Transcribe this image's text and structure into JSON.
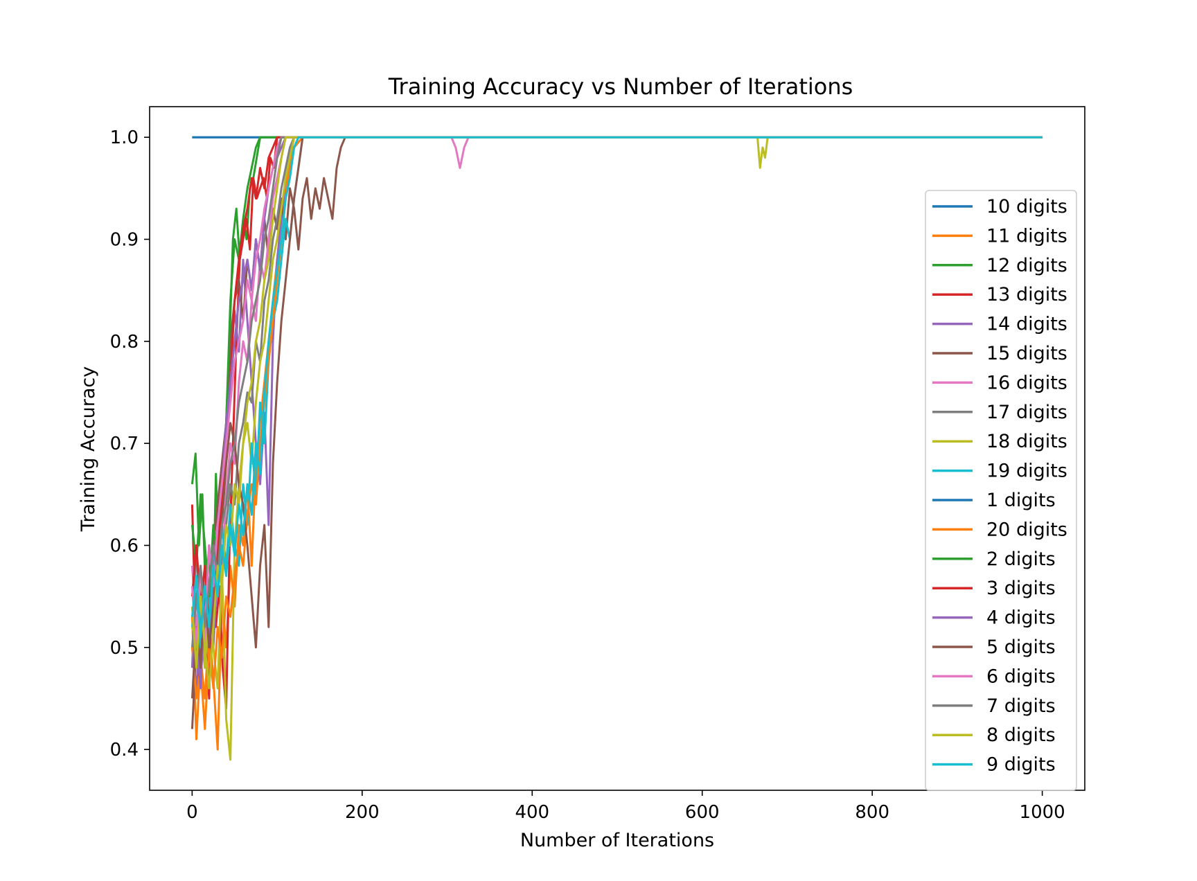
{
  "chart_data": {
    "type": "line",
    "title": "Training Accuracy vs Number of Iterations",
    "xlabel": "Number of Iterations",
    "ylabel": "Training Accuracy",
    "xlim": [
      -50,
      1050
    ],
    "ylim": [
      0.36,
      1.03
    ],
    "xticks": [
      0,
      200,
      400,
      600,
      800,
      1000
    ],
    "xtick_labels": [
      "0",
      "200",
      "400",
      "600",
      "800",
      "1000"
    ],
    "yticks": [
      0.4,
      0.5,
      0.6,
      0.7,
      0.8,
      0.9,
      1.0
    ],
    "ytick_labels": [
      "0.4",
      "0.5",
      "0.6",
      "0.7",
      "0.8",
      "0.9",
      "1.0"
    ],
    "grid": false,
    "legend_position": "right",
    "series": [
      {
        "name": "10 digits",
        "color": "#1f77b4",
        "x": [
          0,
          20,
          40,
          60,
          80,
          100,
          120,
          140,
          1000
        ],
        "y": [
          1.0,
          1.0,
          1.0,
          1.0,
          1.0,
          1.0,
          1.0,
          1.0,
          1.0
        ]
      },
      {
        "name": "11 digits",
        "color": "#ff7f0e",
        "x": [
          0,
          5,
          10,
          15,
          20,
          25,
          30,
          35,
          40,
          45,
          50,
          55,
          60,
          65,
          70,
          75,
          80,
          85,
          90,
          95,
          100,
          105,
          110,
          115,
          120,
          130,
          1000
        ],
        "y": [
          0.53,
          0.41,
          0.49,
          0.45,
          0.52,
          0.47,
          0.4,
          0.55,
          0.5,
          0.58,
          0.54,
          0.62,
          0.6,
          0.66,
          0.58,
          0.68,
          0.72,
          0.76,
          0.8,
          0.84,
          0.88,
          0.92,
          0.95,
          0.98,
          1.0,
          1.0,
          1.0
        ]
      },
      {
        "name": "12 digits",
        "color": "#2ca02c",
        "x": [
          0,
          4,
          8,
          12,
          16,
          20,
          24,
          28,
          32,
          36,
          40,
          44,
          48,
          52,
          56,
          60,
          64,
          68,
          72,
          76,
          80,
          84,
          88,
          92,
          100,
          1000
        ],
        "y": [
          0.66,
          0.69,
          0.6,
          0.65,
          0.55,
          0.6,
          0.52,
          0.67,
          0.58,
          0.66,
          0.72,
          0.8,
          0.9,
          0.93,
          0.88,
          0.92,
          0.9,
          0.95,
          0.96,
          0.98,
          1.0,
          1.0,
          1.0,
          1.0,
          1.0,
          1.0
        ]
      },
      {
        "name": "13 digits",
        "color": "#d62728",
        "x": [
          0,
          4,
          8,
          12,
          16,
          20,
          24,
          28,
          32,
          36,
          40,
          44,
          48,
          52,
          56,
          60,
          64,
          68,
          72,
          76,
          80,
          84,
          88,
          92,
          96,
          100,
          1000
        ],
        "y": [
          0.64,
          0.52,
          0.47,
          0.55,
          0.5,
          0.45,
          0.58,
          0.52,
          0.56,
          0.48,
          0.44,
          0.6,
          0.7,
          0.8,
          0.88,
          0.9,
          0.92,
          0.89,
          0.96,
          0.94,
          0.95,
          0.96,
          0.94,
          0.98,
          0.97,
          1.0,
          1.0
        ]
      },
      {
        "name": "14 digits",
        "color": "#9467bd",
        "x": [
          0,
          5,
          10,
          15,
          20,
          25,
          30,
          35,
          40,
          45,
          50,
          55,
          60,
          65,
          70,
          75,
          80,
          85,
          90,
          95,
          100,
          105,
          110,
          115,
          125,
          1000
        ],
        "y": [
          0.5,
          0.46,
          0.52,
          0.48,
          0.55,
          0.5,
          0.58,
          0.62,
          0.7,
          0.78,
          0.83,
          0.79,
          0.88,
          0.82,
          0.76,
          0.7,
          0.66,
          0.73,
          0.62,
          0.8,
          0.88,
          0.92,
          0.96,
          0.98,
          1.0,
          1.0
        ]
      },
      {
        "name": "15 digits",
        "color": "#8c564b",
        "x": [
          0,
          5,
          10,
          15,
          20,
          25,
          30,
          35,
          40,
          45,
          50,
          55,
          60,
          65,
          70,
          75,
          80,
          85,
          90,
          95,
          100,
          105,
          110,
          115,
          120,
          125,
          130,
          135,
          140,
          145,
          150,
          155,
          160,
          165,
          170,
          175,
          180,
          185,
          1000
        ],
        "y": [
          0.42,
          0.5,
          0.48,
          0.56,
          0.52,
          0.6,
          0.64,
          0.68,
          0.72,
          0.8,
          0.84,
          0.86,
          0.82,
          0.88,
          0.85,
          0.9,
          0.87,
          0.92,
          0.88,
          0.93,
          0.91,
          0.94,
          0.9,
          0.95,
          0.93,
          0.89,
          0.94,
          0.96,
          0.92,
          0.95,
          0.93,
          0.96,
          0.94,
          0.92,
          0.97,
          0.99,
          1.0,
          1.0,
          1.0
        ]
      },
      {
        "name": "16 digits",
        "color": "#e377c2",
        "x": [
          0,
          5,
          10,
          15,
          20,
          25,
          30,
          35,
          40,
          45,
          50,
          55,
          60,
          65,
          70,
          75,
          80,
          85,
          90,
          95,
          100,
          105,
          110,
          120,
          305,
          310,
          315,
          320,
          325,
          330,
          1000
        ],
        "y": [
          0.58,
          0.52,
          0.56,
          0.5,
          0.6,
          0.55,
          0.62,
          0.58,
          0.65,
          0.7,
          0.68,
          0.76,
          0.8,
          0.78,
          0.84,
          0.82,
          0.88,
          0.86,
          0.9,
          0.94,
          0.96,
          0.98,
          1.0,
          1.0,
          1.0,
          0.99,
          0.97,
          0.99,
          1.0,
          1.0,
          1.0
        ]
      },
      {
        "name": "17 digits",
        "color": "#7f7f7f",
        "x": [
          0,
          5,
          10,
          15,
          20,
          25,
          30,
          35,
          40,
          45,
          50,
          55,
          60,
          65,
          70,
          75,
          80,
          85,
          90,
          95,
          100,
          105,
          110,
          115,
          120,
          1000
        ],
        "y": [
          0.48,
          0.6,
          0.52,
          0.57,
          0.5,
          0.55,
          0.6,
          0.58,
          0.62,
          0.66,
          0.64,
          0.7,
          0.72,
          0.75,
          0.74,
          0.8,
          0.78,
          0.84,
          0.86,
          0.9,
          0.92,
          0.95,
          0.97,
          0.99,
          1.0,
          1.0
        ]
      },
      {
        "name": "18 digits",
        "color": "#bcbd22",
        "x": [
          0,
          5,
          10,
          15,
          20,
          25,
          30,
          35,
          40,
          45,
          50,
          55,
          60,
          65,
          70,
          75,
          80,
          85,
          90,
          95,
          100,
          105,
          110,
          115,
          120,
          125,
          665,
          668,
          671,
          674,
          677,
          680,
          1000
        ],
        "y": [
          0.52,
          0.5,
          0.56,
          0.48,
          0.54,
          0.5,
          0.46,
          0.58,
          0.43,
          0.39,
          0.6,
          0.66,
          0.7,
          0.72,
          0.68,
          0.74,
          0.78,
          0.8,
          0.84,
          0.88,
          0.9,
          0.93,
          0.96,
          0.98,
          1.0,
          1.0,
          1.0,
          0.97,
          0.99,
          0.98,
          1.0,
          1.0,
          1.0
        ]
      },
      {
        "name": "19 digits",
        "color": "#17becf",
        "x": [
          0,
          5,
          10,
          15,
          20,
          25,
          30,
          35,
          40,
          45,
          50,
          55,
          60,
          65,
          70,
          75,
          80,
          85,
          90,
          95,
          100,
          105,
          110,
          115,
          120,
          125,
          130,
          1000
        ],
        "y": [
          0.52,
          0.55,
          0.5,
          0.57,
          0.53,
          0.6,
          0.55,
          0.62,
          0.58,
          0.64,
          0.6,
          0.58,
          0.66,
          0.62,
          0.7,
          0.65,
          0.74,
          0.7,
          0.78,
          0.82,
          0.84,
          0.88,
          0.92,
          0.9,
          0.94,
          0.97,
          1.0,
          1.0
        ]
      },
      {
        "name": "1 digits",
        "color": "#1f77b4",
        "x": [
          0,
          1000
        ],
        "y": [
          1.0,
          1.0
        ]
      },
      {
        "name": "20 digits",
        "color": "#ff7f0e",
        "x": [
          0,
          5,
          10,
          15,
          20,
          25,
          30,
          35,
          40,
          45,
          50,
          55,
          60,
          65,
          70,
          75,
          80,
          85,
          90,
          95,
          100,
          105,
          110,
          115,
          120,
          130,
          1000
        ],
        "y": [
          0.5,
          0.45,
          0.48,
          0.42,
          0.5,
          0.46,
          0.52,
          0.49,
          0.55,
          0.53,
          0.57,
          0.6,
          0.58,
          0.63,
          0.66,
          0.64,
          0.7,
          0.74,
          0.78,
          0.82,
          0.86,
          0.9,
          0.94,
          0.97,
          0.99,
          1.0,
          1.0
        ]
      },
      {
        "name": "2 digits",
        "color": "#2ca02c",
        "x": [
          0,
          5,
          10,
          15,
          20,
          25,
          30,
          35,
          40,
          45,
          50,
          55,
          60,
          65,
          70,
          75,
          80,
          85,
          90,
          1000
        ],
        "y": [
          0.62,
          0.58,
          0.65,
          0.6,
          0.55,
          0.62,
          0.58,
          0.66,
          0.72,
          0.84,
          0.9,
          0.88,
          0.92,
          0.95,
          0.97,
          0.99,
          1.0,
          1.0,
          1.0,
          1.0
        ]
      },
      {
        "name": "3 digits",
        "color": "#d62728",
        "x": [
          0,
          5,
          10,
          15,
          20,
          25,
          30,
          35,
          40,
          45,
          50,
          55,
          60,
          65,
          70,
          75,
          80,
          85,
          90,
          95,
          100,
          1000
        ],
        "y": [
          0.55,
          0.6,
          0.54,
          0.58,
          0.52,
          0.56,
          0.6,
          0.64,
          0.7,
          0.76,
          0.84,
          0.88,
          0.91,
          0.93,
          0.96,
          0.94,
          0.97,
          0.95,
          0.98,
          0.99,
          1.0,
          1.0
        ]
      },
      {
        "name": "4 digits",
        "color": "#9467bd",
        "x": [
          0,
          5,
          10,
          15,
          20,
          25,
          30,
          35,
          40,
          45,
          50,
          55,
          60,
          65,
          70,
          75,
          80,
          85,
          90,
          95,
          100,
          105,
          110,
          120,
          1000
        ],
        "y": [
          0.48,
          0.52,
          0.46,
          0.55,
          0.5,
          0.57,
          0.62,
          0.66,
          0.72,
          0.76,
          0.8,
          0.84,
          0.86,
          0.88,
          0.85,
          0.9,
          0.87,
          0.92,
          0.95,
          0.97,
          0.98,
          0.99,
          1.0,
          1.0,
          1.0
        ]
      },
      {
        "name": "5 digits",
        "color": "#8c564b",
        "x": [
          0,
          5,
          10,
          15,
          20,
          25,
          30,
          35,
          40,
          45,
          50,
          55,
          60,
          65,
          70,
          75,
          80,
          85,
          90,
          95,
          100,
          105,
          110,
          115,
          120,
          125,
          130,
          1000
        ],
        "y": [
          0.45,
          0.52,
          0.48,
          0.56,
          0.5,
          0.54,
          0.58,
          0.62,
          0.68,
          0.72,
          0.7,
          0.66,
          0.64,
          0.6,
          0.55,
          0.5,
          0.58,
          0.62,
          0.52,
          0.68,
          0.76,
          0.82,
          0.86,
          0.9,
          0.94,
          0.97,
          1.0,
          1.0
        ]
      },
      {
        "name": "6 digits",
        "color": "#e377c2",
        "x": [
          0,
          5,
          10,
          15,
          20,
          25,
          30,
          35,
          40,
          45,
          50,
          55,
          60,
          65,
          70,
          75,
          80,
          85,
          90,
          95,
          100,
          105,
          110,
          1000
        ],
        "y": [
          0.56,
          0.5,
          0.58,
          0.52,
          0.6,
          0.56,
          0.62,
          0.66,
          0.7,
          0.74,
          0.78,
          0.8,
          0.82,
          0.86,
          0.84,
          0.88,
          0.9,
          0.93,
          0.95,
          0.97,
          0.99,
          1.0,
          1.0,
          1.0
        ]
      },
      {
        "name": "7 digits",
        "color": "#7f7f7f",
        "x": [
          0,
          5,
          10,
          15,
          20,
          25,
          30,
          35,
          40,
          45,
          50,
          55,
          60,
          65,
          70,
          75,
          80,
          85,
          90,
          95,
          100,
          105,
          110,
          1000
        ],
        "y": [
          0.5,
          0.55,
          0.58,
          0.52,
          0.56,
          0.6,
          0.57,
          0.62,
          0.64,
          0.68,
          0.7,
          0.74,
          0.76,
          0.78,
          0.82,
          0.84,
          0.86,
          0.9,
          0.92,
          0.95,
          0.98,
          1.0,
          1.0,
          1.0
        ]
      },
      {
        "name": "8 digits",
        "color": "#bcbd22",
        "x": [
          0,
          5,
          10,
          15,
          20,
          25,
          30,
          35,
          40,
          45,
          50,
          55,
          60,
          65,
          70,
          75,
          80,
          85,
          90,
          95,
          100,
          105,
          110,
          115,
          1000
        ],
        "y": [
          0.54,
          0.48,
          0.55,
          0.5,
          0.46,
          0.52,
          0.58,
          0.56,
          0.62,
          0.6,
          0.66,
          0.64,
          0.7,
          0.74,
          0.76,
          0.8,
          0.82,
          0.86,
          0.88,
          0.92,
          0.95,
          0.98,
          1.0,
          1.0,
          1.0
        ]
      },
      {
        "name": "9 digits",
        "color": "#17becf",
        "x": [
          0,
          5,
          10,
          15,
          20,
          25,
          30,
          35,
          40,
          45,
          50,
          55,
          60,
          65,
          70,
          75,
          80,
          85,
          90,
          95,
          100,
          105,
          110,
          115,
          120,
          125,
          1000
        ],
        "y": [
          0.53,
          0.57,
          0.51,
          0.56,
          0.52,
          0.58,
          0.55,
          0.6,
          0.57,
          0.62,
          0.59,
          0.64,
          0.61,
          0.66,
          0.63,
          0.7,
          0.67,
          0.75,
          0.8,
          0.84,
          0.87,
          0.9,
          0.94,
          0.96,
          0.99,
          1.0,
          1.0
        ]
      }
    ]
  }
}
